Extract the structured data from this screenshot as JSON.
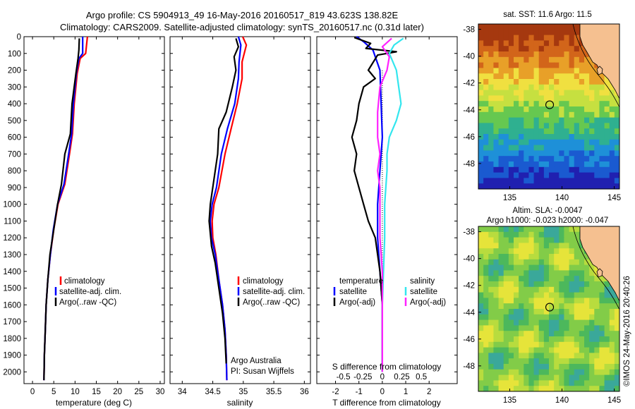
{
  "title": {
    "line1": "Argo profile: CS 5904913_49 16-May-2016 20160517_819 43.623S 138.82E",
    "line2": "Climatology: CARS2009. Satellite-adjusted climatology: synTS_20160517.nc (0.31d later)"
  },
  "colors": {
    "climatology": "#ff0000",
    "satellite": "#0000ff",
    "argo": "#000000",
    "sat_diff_s": "#33e6ee",
    "argo_diff_s": "#ff22ff"
  },
  "chart_data": [
    {
      "type": "line",
      "id": "temperature",
      "xlabel": "temperature (deg C)",
      "xlim": [
        -2,
        31
      ],
      "xticks": [
        0,
        5,
        10,
        15,
        20,
        25,
        30
      ],
      "xticklabels": [
        "0",
        "5",
        "10",
        "15",
        "20",
        "25",
        "30"
      ],
      "ylim": [
        2070,
        0
      ],
      "yticks": [
        0,
        100,
        200,
        300,
        400,
        500,
        600,
        700,
        800,
        900,
        1000,
        1100,
        1200,
        1300,
        1400,
        1500,
        1600,
        1700,
        1800,
        1900,
        2000
      ],
      "legend": [
        "climatology",
        "satellite-adj. clim.",
        "Argo(..raw -QC)"
      ],
      "series": [
        {
          "name": "climatology",
          "color": "#ff0000",
          "points": [
            [
              12.9,
              0
            ],
            [
              12.5,
              100
            ],
            [
              11.2,
              130
            ],
            [
              10.5,
              220
            ],
            [
              9.8,
              400
            ],
            [
              9.4,
              580
            ],
            [
              8.7,
              700
            ],
            [
              7.6,
              880
            ],
            [
              6.0,
              1000
            ],
            [
              5.0,
              1150
            ],
            [
              4.2,
              1300
            ],
            [
              3.6,
              1450
            ],
            [
              3.2,
              1600
            ],
            [
              3.0,
              1750
            ],
            [
              2.8,
              1900
            ],
            [
              2.7,
              2050
            ]
          ]
        },
        {
          "name": "satellite-adj. clim.",
          "color": "#0000ff",
          "points": [
            [
              11.8,
              0
            ],
            [
              11.8,
              100
            ],
            [
              10.9,
              130
            ],
            [
              10.3,
              220
            ],
            [
              9.6,
              400
            ],
            [
              9.2,
              580
            ],
            [
              8.5,
              700
            ],
            [
              7.4,
              880
            ],
            [
              5.9,
              1000
            ],
            [
              4.9,
              1150
            ],
            [
              4.2,
              1300
            ],
            [
              3.6,
              1450
            ],
            [
              3.2,
              1600
            ],
            [
              3.0,
              1750
            ],
            [
              2.8,
              1900
            ],
            [
              2.7,
              2050
            ]
          ]
        },
        {
          "name": "Argo(..raw -QC)",
          "color": "#000000",
          "points": [
            [
              11.0,
              10
            ],
            [
              10.9,
              80
            ],
            [
              10.7,
              130
            ],
            [
              10.2,
              220
            ],
            [
              9.3,
              400
            ],
            [
              8.9,
              580
            ],
            [
              7.6,
              700
            ],
            [
              6.8,
              880
            ],
            [
              5.9,
              1000
            ],
            [
              5.0,
              1150
            ],
            [
              4.1,
              1300
            ],
            [
              3.6,
              1450
            ],
            [
              3.2,
              1600
            ],
            [
              3.0,
              1750
            ],
            [
              2.8,
              1900
            ],
            [
              2.7,
              2050
            ]
          ]
        }
      ]
    },
    {
      "type": "line",
      "id": "salinity",
      "xlabel": "salinity",
      "xlim": [
        33.8,
        36.1
      ],
      "xticks": [
        34,
        34.5,
        35,
        35.5,
        36
      ],
      "xticklabels": [
        "34",
        "34.5",
        "35",
        "35.5",
        "36"
      ],
      "ylim": [
        2070,
        0
      ],
      "legend": [
        "climatology",
        "satellite-adj. clim.",
        "Argo(..raw -QC)"
      ],
      "annotations": [
        "Argo Australia",
        "PI: Susan Wijffels"
      ],
      "series": [
        {
          "name": "climatology",
          "color": "#ff0000",
          "points": [
            [
              34.99,
              0
            ],
            [
              35.05,
              50
            ],
            [
              34.98,
              150
            ],
            [
              34.98,
              250
            ],
            [
              34.9,
              400
            ],
            [
              34.8,
              550
            ],
            [
              34.7,
              700
            ],
            [
              34.6,
              900
            ],
            [
              34.52,
              1000
            ],
            [
              34.49,
              1100
            ],
            [
              34.5,
              1200
            ],
            [
              34.55,
              1300
            ],
            [
              34.6,
              1450
            ],
            [
              34.66,
              1600
            ],
            [
              34.7,
              1750
            ],
            [
              34.72,
              1900
            ],
            [
              34.73,
              2050
            ]
          ]
        },
        {
          "name": "satellite-adj. clim.",
          "color": "#0000ff",
          "points": [
            [
              34.92,
              0
            ],
            [
              34.96,
              50
            ],
            [
              34.93,
              150
            ],
            [
              34.92,
              250
            ],
            [
              34.86,
              400
            ],
            [
              34.74,
              550
            ],
            [
              34.64,
              700
            ],
            [
              34.56,
              900
            ],
            [
              34.49,
              1000
            ],
            [
              34.46,
              1100
            ],
            [
              34.48,
              1200
            ],
            [
              34.54,
              1300
            ],
            [
              34.6,
              1450
            ],
            [
              34.66,
              1600
            ],
            [
              34.7,
              1750
            ],
            [
              34.72,
              1900
            ],
            [
              34.73,
              2050
            ]
          ]
        },
        {
          "name": "Argo(..raw -QC)",
          "color": "#000000",
          "points": [
            [
              34.88,
              10
            ],
            [
              34.92,
              60
            ],
            [
              34.85,
              120
            ],
            [
              34.88,
              200
            ],
            [
              34.82,
              300
            ],
            [
              34.72,
              450
            ],
            [
              34.6,
              550
            ],
            [
              34.58,
              700
            ],
            [
              34.52,
              850
            ],
            [
              34.46,
              1000
            ],
            [
              34.44,
              1100
            ],
            [
              34.48,
              1250
            ],
            [
              34.54,
              1350
            ],
            [
              34.6,
              1500
            ],
            [
              34.66,
              1650
            ],
            [
              34.7,
              1800
            ],
            [
              34.72,
              1950
            ]
          ]
        }
      ]
    },
    {
      "type": "line",
      "id": "difference",
      "xlabel": "T difference from climatology",
      "xlabel_top": "S difference from climatology",
      "xlim": [
        -2.8,
        3.2
      ],
      "xticks": [
        -2,
        -1,
        0,
        1,
        2
      ],
      "xticklabels": [
        "-2",
        "-1",
        "0",
        "1",
        "2"
      ],
      "s_ticklabels": [
        "-0.5",
        "-0.25",
        "0",
        "0.25",
        "0.5"
      ],
      "ylim": [
        2070,
        0
      ],
      "legend_temperature": [
        "temperature",
        "satellite",
        "Argo(-adj)"
      ],
      "legend_salinity": [
        "salinity",
        "satellite",
        "Argo(-adj)"
      ],
      "series": [
        {
          "name": "satellite",
          "color": "#0000ff",
          "points": [
            [
              -1.1,
              0
            ],
            [
              -0.8,
              30
            ],
            [
              -0.4,
              80
            ],
            [
              -0.3,
              120
            ],
            [
              -0.1,
              200
            ],
            [
              -0.05,
              400
            ],
            [
              0.0,
              600
            ],
            [
              -0.1,
              800
            ],
            [
              -0.2,
              1000
            ],
            [
              -0.2,
              1200
            ],
            [
              -0.1,
              1400
            ],
            [
              0.0,
              1600
            ],
            [
              0.0,
              1800
            ],
            [
              0.0,
              2000
            ]
          ]
        },
        {
          "name": "Argo(-adj)",
          "color": "#000000",
          "points": [
            [
              -1.2,
              5
            ],
            [
              -0.5,
              40
            ],
            [
              -0.7,
              70
            ],
            [
              0.6,
              90
            ],
            [
              -0.2,
              110
            ],
            [
              -0.6,
              200
            ],
            [
              -0.3,
              250
            ],
            [
              -0.8,
              300
            ],
            [
              -1.0,
              400
            ],
            [
              -1.1,
              500
            ],
            [
              -1.3,
              600
            ],
            [
              -1.1,
              700
            ],
            [
              -1.2,
              800
            ],
            [
              -1.0,
              900
            ],
            [
              -0.8,
              1000
            ],
            [
              -0.6,
              1100
            ],
            [
              -0.3,
              1200
            ],
            [
              -0.2,
              1300
            ],
            [
              -0.1,
              1400
            ],
            [
              0.0,
              1600
            ],
            [
              0.0,
              1800
            ],
            [
              0.0,
              2000
            ]
          ]
        },
        {
          "name": "satellite S",
          "color": "#33e6ee",
          "points": [
            [
              0.9,
              10
            ],
            [
              0.5,
              50
            ],
            [
              0.3,
              100
            ],
            [
              0.6,
              200
            ],
            [
              0.7,
              300
            ],
            [
              0.8,
              400
            ],
            [
              0.6,
              500
            ],
            [
              0.3,
              600
            ],
            [
              0.2,
              700
            ],
            [
              0.2,
              800
            ],
            [
              0.1,
              1000
            ],
            [
              0.1,
              1200
            ],
            [
              0.05,
              1400
            ],
            [
              0.0,
              1600
            ],
            [
              0.0,
              2000
            ]
          ]
        },
        {
          "name": "Argo S",
          "color": "#ff22ff",
          "points": [
            [
              0.4,
              10
            ],
            [
              0.0,
              60
            ],
            [
              0.3,
              120
            ],
            [
              0.2,
              200
            ],
            [
              -0.1,
              300
            ],
            [
              -0.2,
              450
            ],
            [
              -0.2,
              600
            ],
            [
              -0.1,
              700
            ],
            [
              -0.2,
              800
            ],
            [
              -0.1,
              900
            ],
            [
              -0.1,
              1000
            ],
            [
              -0.1,
              1200
            ],
            [
              0.0,
              1400
            ],
            [
              0.0,
              1600
            ],
            [
              0.0,
              2000
            ]
          ]
        }
      ]
    },
    {
      "type": "heatmap",
      "id": "sst-map",
      "title": "sat. SST: 11.6 Argo: 11.5",
      "xlim": [
        132,
        145.5
      ],
      "ylim": [
        -49.9,
        -37.6
      ],
      "xticks": [
        135,
        140,
        145
      ],
      "yticks": [
        -38,
        -40,
        -42,
        -44,
        -46,
        -48
      ],
      "profile_marker": {
        "lon": 138.82,
        "lat": -43.623
      }
    },
    {
      "type": "heatmap",
      "id": "sla-map",
      "title_line1": "Altim. SLA: -0.0047",
      "title_line2": "Argo h1000: -0.023 h2000: -0.047",
      "xlim": [
        132,
        145.5
      ],
      "ylim": [
        -49.9,
        -37.6
      ],
      "xticks": [
        135,
        140,
        145
      ],
      "yticks": [
        -38,
        -40,
        -42,
        -44,
        -46,
        -48
      ],
      "profile_marker": {
        "lon": 138.82,
        "lat": -43.623
      }
    }
  ],
  "credit": "©IMOS 24-May-2016 20:40:26"
}
